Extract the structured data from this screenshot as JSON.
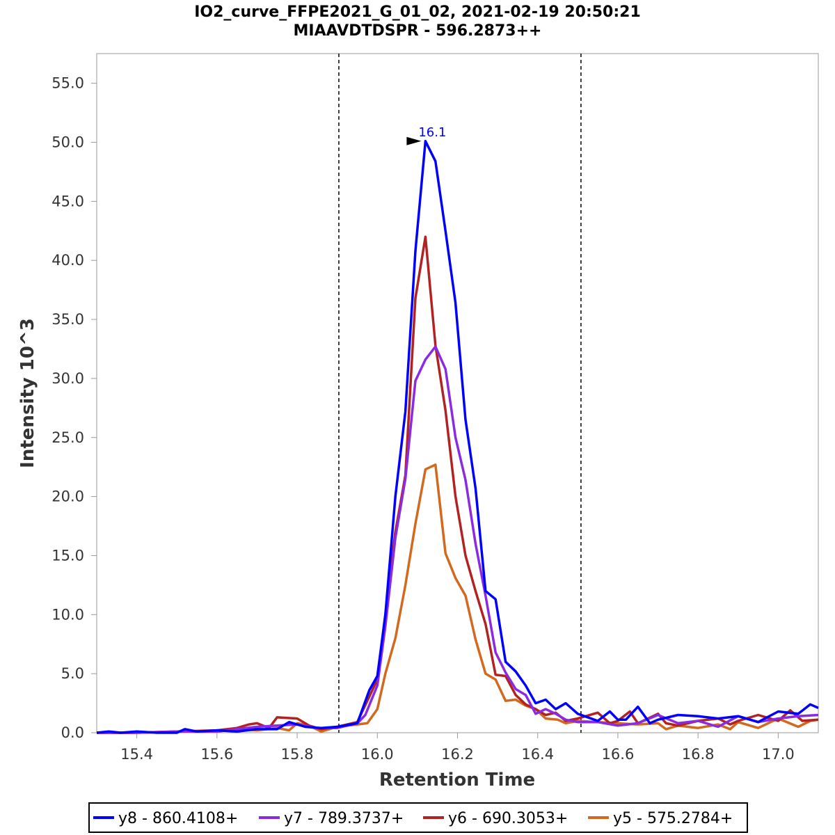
{
  "chart_data": {
    "type": "line",
    "title": "IO2_curve_FFPE2021_G_01_02, 2021-02-19 20:50:21",
    "subtitle": "MIAAVDTDSPR - 596.2873++",
    "xlabel": "Retention Time",
    "ylabel": "Intensity 10^3",
    "xlim": [
      15.3,
      17.1
    ],
    "ylim": [
      0,
      57
    ],
    "x_ticks": [
      15.4,
      15.6,
      15.8,
      16.0,
      16.2,
      16.4,
      16.6,
      16.8,
      17.0
    ],
    "x_tick_labels": [
      "15.4",
      "15.6",
      "15.8",
      "16.0",
      "16.2",
      "16.4",
      "16.6",
      "16.8",
      "17.0"
    ],
    "y_ticks": [
      0,
      5,
      10,
      15,
      20,
      25,
      30,
      35,
      40,
      45,
      50,
      55
    ],
    "y_tick_labels": [
      "0.0",
      "5.0",
      "10.0",
      "15.0",
      "20.0",
      "25.0",
      "30.0",
      "35.0",
      "40.0",
      "45.0",
      "50.0",
      "55.0"
    ],
    "integration_bounds": [
      15.904,
      16.508
    ],
    "peak_annotation": {
      "label": "16.1",
      "x": 16.12,
      "y": 50.1,
      "color": "#0000ff"
    },
    "legend_position": "bottom",
    "series": [
      {
        "name": "y8 - 860.4108+",
        "color": "#0000ff",
        "x": [
          15.3,
          15.33,
          15.36,
          15.4,
          15.45,
          15.5,
          15.52,
          15.55,
          15.6,
          15.65,
          15.7,
          15.75,
          15.78,
          15.82,
          15.86,
          15.9,
          15.95,
          15.98,
          16.0,
          16.02,
          16.045,
          16.07,
          16.095,
          16.12,
          16.145,
          16.17,
          16.195,
          16.22,
          16.245,
          16.27,
          16.295,
          16.32,
          16.345,
          16.37,
          16.395,
          16.42,
          16.445,
          16.47,
          16.5,
          16.55,
          16.58,
          16.6,
          16.62,
          16.65,
          16.68,
          16.7,
          16.75,
          16.8,
          16.85,
          16.9,
          16.95,
          17.0,
          17.05,
          17.08,
          17.1
        ],
        "values": [
          0.0,
          0.1,
          0.0,
          0.1,
          0.0,
          0.0,
          0.3,
          0.1,
          0.2,
          0.1,
          0.3,
          0.3,
          0.9,
          0.5,
          0.4,
          0.5,
          0.8,
          3.6,
          4.8,
          10.0,
          20.0,
          27.2,
          40.8,
          50.1,
          48.4,
          42.5,
          36.4,
          26.5,
          20.7,
          12.0,
          11.3,
          6.0,
          5.2,
          4.0,
          2.5,
          2.8,
          2.0,
          2.5,
          1.6,
          1.0,
          1.8,
          1.1,
          1.1,
          2.2,
          0.8,
          1.1,
          1.5,
          1.4,
          1.2,
          1.4,
          0.9,
          1.8,
          1.6,
          2.4,
          2.1
        ]
      },
      {
        "name": "y7 - 789.3737+",
        "color": "#8a2be2",
        "x": [
          15.3,
          15.4,
          15.5,
          15.6,
          15.65,
          15.7,
          15.75,
          15.8,
          15.85,
          15.9,
          15.95,
          15.97,
          16.0,
          16.02,
          16.045,
          16.07,
          16.095,
          16.12,
          16.145,
          16.17,
          16.195,
          16.22,
          16.245,
          16.27,
          16.295,
          16.32,
          16.345,
          16.37,
          16.395,
          16.42,
          16.445,
          16.47,
          16.5,
          16.55,
          16.6,
          16.65,
          16.7,
          16.75,
          16.8,
          16.85,
          16.9,
          16.95,
          17.0,
          17.05,
          17.1
        ],
        "values": [
          0.0,
          0.0,
          0.1,
          0.1,
          0.3,
          0.5,
          0.6,
          0.7,
          0.4,
          0.4,
          0.8,
          1.5,
          4.0,
          9.0,
          16.5,
          21.5,
          29.8,
          31.6,
          32.7,
          30.8,
          25.0,
          21.4,
          16.0,
          11.6,
          6.8,
          5.1,
          3.7,
          3.2,
          1.6,
          2.0,
          1.6,
          1.1,
          0.9,
          0.9,
          0.6,
          0.8,
          1.5,
          0.8,
          1.0,
          0.5,
          1.4,
          0.9,
          1.2,
          1.4,
          1.5
        ]
      },
      {
        "name": "y6 - 690.3053+",
        "color": "#b22222",
        "x": [
          15.3,
          15.4,
          15.5,
          15.6,
          15.65,
          15.68,
          15.7,
          15.73,
          15.75,
          15.8,
          15.83,
          15.86,
          15.9,
          15.95,
          16.0,
          16.02,
          16.045,
          16.07,
          16.095,
          16.12,
          16.145,
          16.17,
          16.195,
          16.22,
          16.245,
          16.27,
          16.295,
          16.32,
          16.345,
          16.37,
          16.395,
          16.42,
          16.445,
          16.47,
          16.5,
          16.55,
          16.58,
          16.6,
          16.63,
          16.65,
          16.7,
          16.72,
          16.75,
          16.8,
          16.85,
          16.88,
          16.9,
          16.95,
          17.0,
          17.03,
          17.06,
          17.1
        ],
        "values": [
          0.0,
          0.0,
          0.1,
          0.2,
          0.4,
          0.7,
          0.8,
          0.4,
          1.3,
          1.2,
          0.6,
          0.3,
          0.5,
          0.9,
          4.5,
          10.0,
          17.0,
          21.8,
          36.8,
          42.0,
          32.8,
          27.3,
          20.0,
          15.0,
          12.0,
          9.2,
          4.9,
          4.8,
          3.2,
          2.4,
          2.0,
          1.5,
          1.7,
          1.0,
          1.2,
          1.7,
          0.8,
          1.0,
          1.8,
          0.8,
          1.6,
          0.8,
          0.6,
          1.0,
          1.2,
          0.7,
          1.0,
          1.5,
          1.0,
          1.9,
          1.0,
          1.1
        ]
      },
      {
        "name": "y5 - 575.2784+",
        "color": "#d2691e",
        "x": [
          15.3,
          15.4,
          15.5,
          15.6,
          15.65,
          15.7,
          15.75,
          15.78,
          15.8,
          15.83,
          15.86,
          15.9,
          15.95,
          15.975,
          16.0,
          16.02,
          16.045,
          16.07,
          16.095,
          16.12,
          16.145,
          16.17,
          16.195,
          16.22,
          16.245,
          16.27,
          16.295,
          16.32,
          16.345,
          16.37,
          16.395,
          16.42,
          16.45,
          16.47,
          16.5,
          16.55,
          16.6,
          16.65,
          16.7,
          16.72,
          16.75,
          16.8,
          16.85,
          16.88,
          16.9,
          16.95,
          17.0,
          17.05,
          17.08,
          17.1
        ],
        "values": [
          0.0,
          0.0,
          0.1,
          0.1,
          0.3,
          0.2,
          0.4,
          0.2,
          0.8,
          0.6,
          0.1,
          0.5,
          0.7,
          0.8,
          2.0,
          5.0,
          8.0,
          12.5,
          17.7,
          22.3,
          22.7,
          15.2,
          13.1,
          11.6,
          7.9,
          5.0,
          4.5,
          2.7,
          2.8,
          2.3,
          2.0,
          1.2,
          1.1,
          0.8,
          1.0,
          0.9,
          0.8,
          0.7,
          0.8,
          0.3,
          0.6,
          0.4,
          0.7,
          0.3,
          0.9,
          0.4,
          1.2,
          0.5,
          1.0,
          1.1
        ]
      }
    ]
  }
}
